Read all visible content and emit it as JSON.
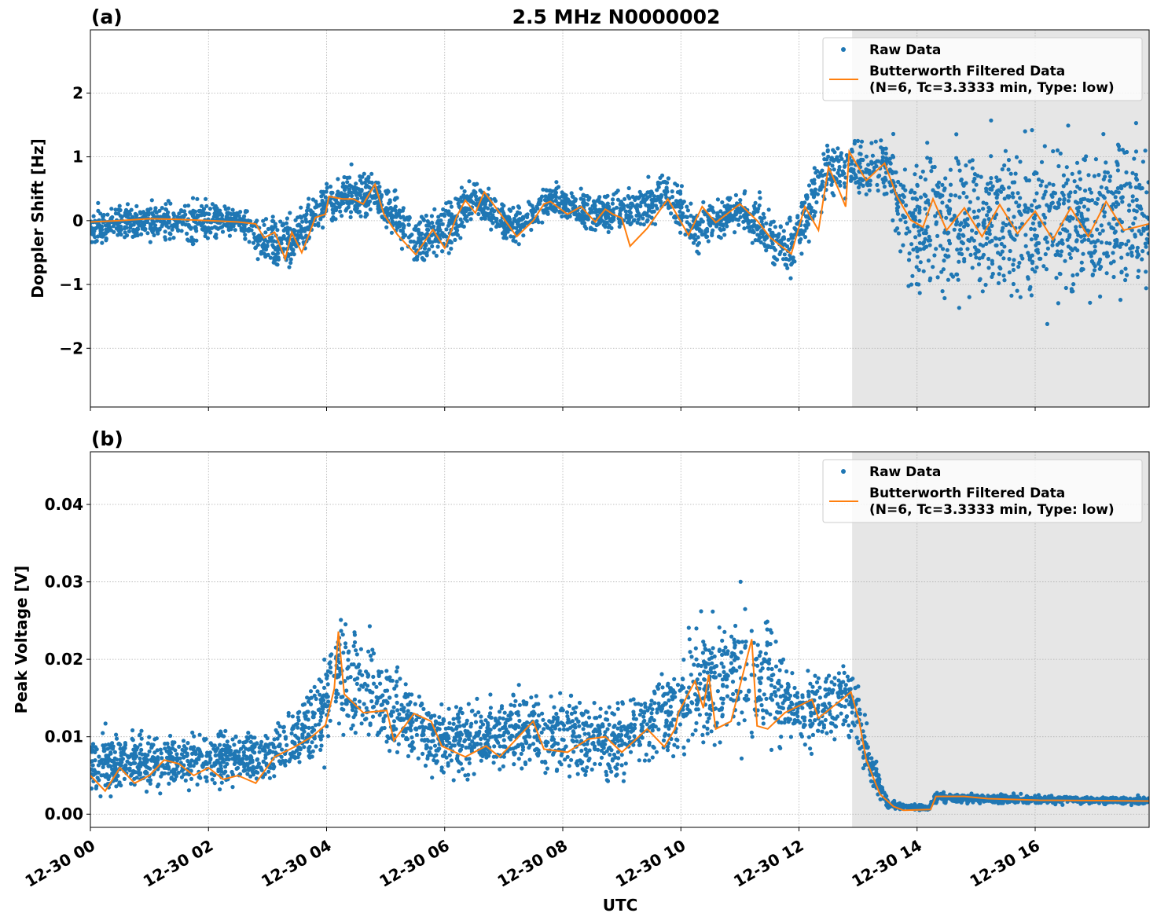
{
  "figure": {
    "title": "2.5 MHz N0000002",
    "xlabel": "UTC"
  },
  "colors": {
    "raw": "#1f77b4",
    "filtered": "#ff7f0e",
    "shade": "#e6e6e6",
    "grid": "#b0b0b0"
  },
  "legend": {
    "raw_label": "Raw Data",
    "filtered_line1": "Butterworth Filtered Data",
    "filtered_line2": "(N=6, Tc=3.3333 min, Type: low)",
    "placement": "upper-right"
  },
  "x_axis": {
    "unit": "hours since 12-30 00:00 UTC",
    "range_hours": [
      0,
      17.93
    ],
    "ticks": [
      {
        "value": 0,
        "label": "12-30 00"
      },
      {
        "value": 2,
        "label": "12-30 02"
      },
      {
        "value": 4,
        "label": "12-30 04"
      },
      {
        "value": 6,
        "label": "12-30 06"
      },
      {
        "value": 8,
        "label": "12-30 08"
      },
      {
        "value": 10,
        "label": "12-30 10"
      },
      {
        "value": 12,
        "label": "12-30 12"
      },
      {
        "value": 14,
        "label": "12-30 14"
      },
      {
        "value": 16,
        "label": "12-30 16"
      }
    ],
    "shaded_region_hours": [
      12.9,
      17.93
    ]
  },
  "chart_data": [
    {
      "type": "scatter+line",
      "panel_label": "(a)",
      "ylabel": "Doppler Shift [Hz]",
      "ylim": [
        -2.92,
        2.99
      ],
      "grid": true,
      "yticks": [
        {
          "value": 2,
          "label": "2"
        },
        {
          "value": 1,
          "label": "1"
        },
        {
          "value": 0,
          "label": "0"
        },
        {
          "value": -1,
          "label": "−1"
        },
        {
          "value": -2,
          "label": "−2"
        }
      ],
      "filtered": {
        "name": "Butterworth Filtered Data",
        "t": [
          0,
          0.5,
          1,
          1.5,
          2,
          2.5,
          2.8,
          2.94,
          3.12,
          3.3,
          3.41,
          3.58,
          3.7,
          3.81,
          3.98,
          4.04,
          4.27,
          4.45,
          4.62,
          4.82,
          4.97,
          5.2,
          5.51,
          5.8,
          6.0,
          6.2,
          6.35,
          6.52,
          6.67,
          6.87,
          7.22,
          7.5,
          7.68,
          7.79,
          8.08,
          8.31,
          8.55,
          8.72,
          8.85,
          9.0,
          9.14,
          9.43,
          9.78,
          10.13,
          10.36,
          10.59,
          11.0,
          11.29,
          11.52,
          11.87,
          12.1,
          12.33,
          12.5,
          12.68,
          12.79,
          12.85,
          13.14,
          13.45,
          13.66,
          13.89,
          14.1,
          14.27,
          14.5,
          14.8,
          15.1,
          15.4,
          15.7,
          16.0,
          16.3,
          16.6,
          16.9,
          17.2,
          17.5,
          17.93
        ],
        "values": [
          -0.02,
          0.0,
          0.03,
          0.02,
          0.0,
          -0.02,
          -0.05,
          -0.27,
          -0.18,
          -0.6,
          -0.18,
          -0.5,
          -0.22,
          0.05,
          0.1,
          0.38,
          0.34,
          0.34,
          0.26,
          0.57,
          0.1,
          -0.22,
          -0.53,
          -0.14,
          -0.43,
          0.06,
          0.32,
          0.12,
          0.45,
          0.2,
          -0.25,
          0.0,
          0.26,
          0.3,
          0.1,
          0.22,
          -0.02,
          0.18,
          0.1,
          0.04,
          -0.4,
          -0.12,
          0.34,
          -0.23,
          0.22,
          -0.03,
          0.26,
          0.0,
          -0.27,
          -0.52,
          0.22,
          -0.15,
          0.84,
          0.47,
          0.22,
          1.08,
          0.63,
          0.9,
          0.38,
          0.01,
          -0.1,
          0.34,
          -0.15,
          0.2,
          -0.25,
          0.25,
          -0.2,
          0.15,
          -0.3,
          0.2,
          -0.25,
          0.3,
          -0.15,
          -0.05
        ]
      },
      "raw_envelope": {
        "name": "Raw Data",
        "t": [
          0,
          1,
          1.7,
          2.5,
          3,
          3.5,
          4,
          4.8,
          5.5,
          6,
          6.5,
          7.2,
          7.8,
          8.5,
          9,
          9.8,
          10.2,
          11,
          11.8,
          12.5,
          12.9,
          13.5,
          13.8,
          14,
          16,
          17.93
        ],
        "low": [
          -0.45,
          -0.4,
          -0.5,
          -0.3,
          -0.9,
          -0.9,
          -0.1,
          0.0,
          -0.85,
          -0.7,
          -0.05,
          -0.5,
          0.0,
          -0.3,
          -0.3,
          -0.1,
          -0.6,
          -0.2,
          -1.1,
          0.2,
          0.3,
          0.2,
          -1.2,
          -1.6,
          -1.7,
          -1.8
        ],
        "high": [
          0.25,
          0.35,
          0.5,
          0.3,
          0.15,
          0.3,
          0.75,
          0.85,
          0.2,
          0.4,
          0.75,
          0.3,
          0.7,
          0.5,
          0.55,
          0.9,
          0.3,
          0.6,
          0.1,
          1.4,
          1.3,
          1.5,
          1.3,
          1.6,
          1.7,
          1.9
        ]
      }
    },
    {
      "type": "scatter+line",
      "panel_label": "(b)",
      "ylabel": "Peak Voltage [V]",
      "ylim": [
        -0.0017,
        0.0468
      ],
      "grid": true,
      "yticks": [
        {
          "value": 0.04,
          "label": "0.04"
        },
        {
          "value": 0.03,
          "label": "0.03"
        },
        {
          "value": 0.02,
          "label": "0.02"
        },
        {
          "value": 0.01,
          "label": "0.01"
        },
        {
          "value": 0.0,
          "label": "0.00"
        }
      ],
      "filtered": {
        "name": "Butterworth Filtered Data",
        "t": [
          0,
          0.25,
          0.5,
          0.75,
          1,
          1.25,
          1.5,
          1.75,
          2,
          2.25,
          2.5,
          2.8,
          3.12,
          3.46,
          3.75,
          3.98,
          4.13,
          4.2,
          4.3,
          4.62,
          5.02,
          5.14,
          5.48,
          5.77,
          5.95,
          6.35,
          6.7,
          6.93,
          7.5,
          7.68,
          8.08,
          8.43,
          8.72,
          9.0,
          9.43,
          9.72,
          9.9,
          9.96,
          10.24,
          10.38,
          10.47,
          10.59,
          10.85,
          11.2,
          11.29,
          11.47,
          11.76,
          12.22,
          12.33,
          12.79,
          12.88,
          13.02,
          13.14,
          13.37,
          13.6,
          13.77,
          14.23,
          14.32,
          14.8,
          15.2,
          16.07,
          17.93
        ],
        "values": [
          0.005,
          0.003,
          0.006,
          0.004,
          0.005,
          0.007,
          0.0065,
          0.005,
          0.006,
          0.0045,
          0.005,
          0.004,
          0.0074,
          0.0087,
          0.01,
          0.0115,
          0.0162,
          0.0236,
          0.0155,
          0.0131,
          0.0134,
          0.0095,
          0.013,
          0.012,
          0.0088,
          0.0074,
          0.0088,
          0.0074,
          0.012,
          0.0084,
          0.008,
          0.0097,
          0.01,
          0.008,
          0.011,
          0.0087,
          0.011,
          0.0131,
          0.0172,
          0.0137,
          0.018,
          0.011,
          0.012,
          0.0226,
          0.0114,
          0.011,
          0.0131,
          0.0148,
          0.0124,
          0.0152,
          0.0158,
          0.012,
          0.007,
          0.0026,
          0.001,
          0.0005,
          0.0006,
          0.0023,
          0.0023,
          0.002,
          0.0018,
          0.0017
        ]
      },
      "raw_envelope": {
        "name": "Raw Data",
        "t": [
          0,
          2,
          3,
          3.8,
          4.2,
          5,
          6,
          7.5,
          9,
          9.8,
          10.5,
          11.2,
          12,
          12.9,
          13.2,
          13.5,
          14.2,
          14.3,
          15,
          17.93
        ],
        "low": [
          0.0015,
          0.002,
          0.003,
          0.005,
          0.007,
          0.006,
          0.004,
          0.004,
          0.003,
          0.005,
          0.006,
          0.006,
          0.007,
          0.008,
          0.003,
          0.0005,
          0.0003,
          0.0012,
          0.0012,
          0.0011
        ],
        "high": [
          0.011,
          0.012,
          0.012,
          0.018,
          0.03,
          0.022,
          0.015,
          0.018,
          0.016,
          0.022,
          0.028,
          0.03,
          0.02,
          0.022,
          0.01,
          0.002,
          0.0012,
          0.003,
          0.0028,
          0.0023
        ]
      }
    }
  ]
}
